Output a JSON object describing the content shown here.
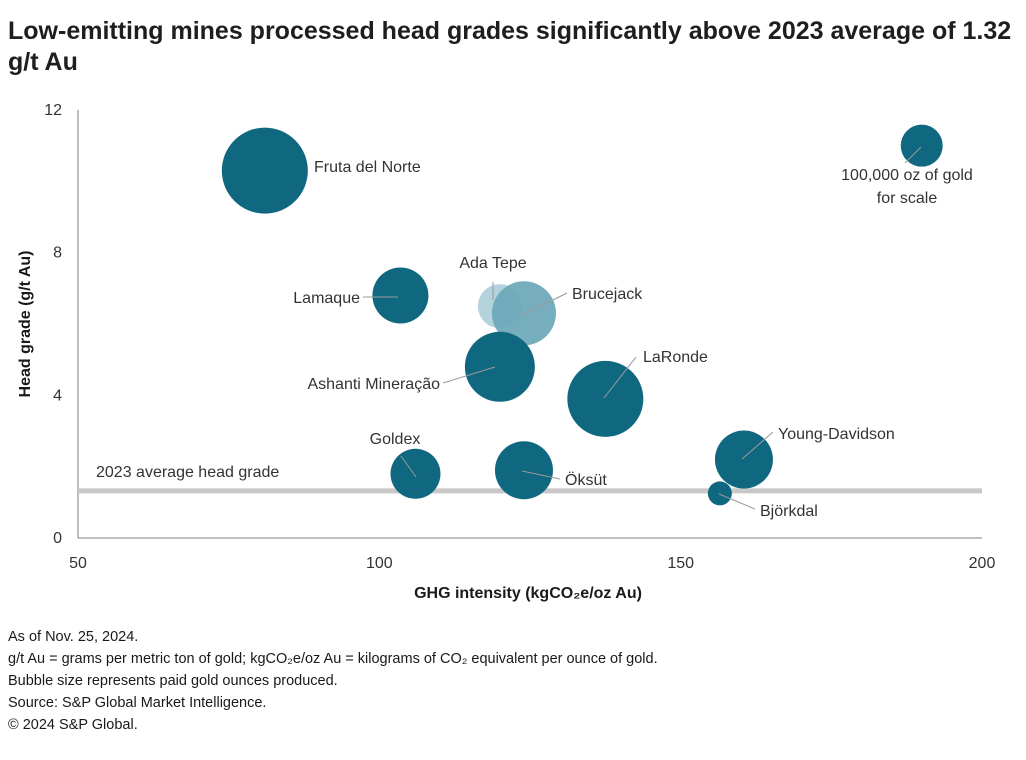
{
  "chart_data": {
    "type": "bubble",
    "title": "Low-emitting mines processed head grades significantly above 2023 average of 1.32 g/t Au",
    "xlabel": "GHG intensity (kgCO₂e/oz Au)",
    "ylabel": "Head grade (g/t Au)",
    "xlim": [
      50,
      200
    ],
    "ylim": [
      0,
      12
    ],
    "xticks": [
      "50",
      "100",
      "150",
      "200"
    ],
    "yticks": [
      "0",
      "4",
      "8",
      "12"
    ],
    "reference_line": {
      "label": "2023 average head grade",
      "y": 1.32
    },
    "points": [
      {
        "label": "Fruta del Norte",
        "x": 81,
        "y": 10.3,
        "radius": 43,
        "color": "#0f6880"
      },
      {
        "label": "Lamaque",
        "x": 103.5,
        "y": 6.8,
        "radius": 28,
        "color": "#0f6880"
      },
      {
        "label": "Ada Tepe",
        "x": 120,
        "y": 6.5,
        "radius": 22,
        "color": "#b5d3dc"
      },
      {
        "label": "Brucejack",
        "x": 124,
        "y": 6.3,
        "radius": 32,
        "color": "#6ba7b9"
      },
      {
        "label": "Ashanti Mineração",
        "x": 120,
        "y": 4.8,
        "radius": 35,
        "color": "#0f6880"
      },
      {
        "label": "LaRonde",
        "x": 137.5,
        "y": 3.9,
        "radius": 38,
        "color": "#0f6880"
      },
      {
        "label": "Goldex",
        "x": 106,
        "y": 1.8,
        "radius": 25,
        "color": "#0f6880"
      },
      {
        "label": "Öksüt",
        "x": 124,
        "y": 1.9,
        "radius": 29,
        "color": "#0f6880"
      },
      {
        "label": "Young-Davidson",
        "x": 160.5,
        "y": 2.2,
        "radius": 29,
        "color": "#0f6880"
      },
      {
        "label": "Björkdal",
        "x": 156.5,
        "y": 1.25,
        "radius": 12,
        "color": "#0f6880"
      },
      {
        "label": "100,000 oz of gold for scale",
        "x": 190,
        "y": 11.0,
        "radius": 21,
        "color": "#0f6880"
      }
    ]
  },
  "notes": [
    "As of Nov. 25, 2024.",
    "g/t Au = grams per metric ton of gold; kgCO₂e/oz Au = kilograms of CO₂ equivalent per ounce of gold.",
    "Bubble size represents paid gold ounces produced.",
    "Source: S&P Global Market Intelligence.",
    "© 2024 S&P Global."
  ]
}
